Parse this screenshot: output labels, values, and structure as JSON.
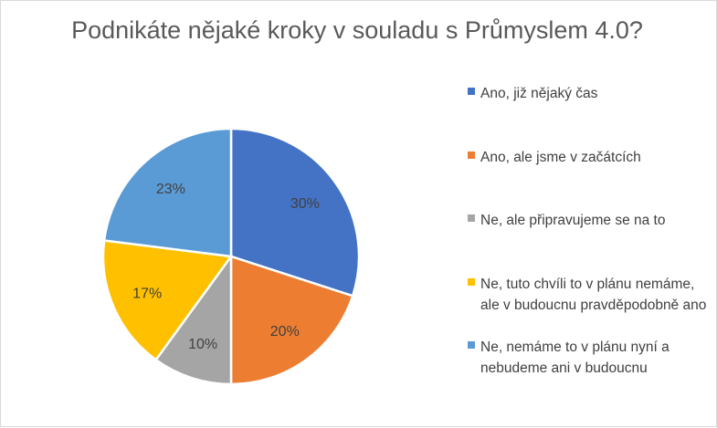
{
  "chart_data": {
    "type": "pie",
    "title": "Podnikáte nějaké kroky v souladu s Průmyslem 4.0?",
    "categories": [
      "Ano, již nějaký čas",
      "Ano, ale jsme v začátcích",
      "Ne, ale připravujeme se na to",
      "Ne, tuto chvíli to v plánu nemáme, ale v budoucnu pravděpodobně ano",
      "Ne, nemáme to v plánu nyní a nebudeme ani v budoucnu"
    ],
    "values": [
      30,
      20,
      10,
      17,
      23
    ],
    "labels": [
      "30%",
      "20%",
      "10%",
      "17%",
      "23%"
    ],
    "colors": [
      "#4472c4",
      "#ed7d31",
      "#a5a5a5",
      "#ffc000",
      "#5b9bd5"
    ],
    "legend_position": "right"
  }
}
